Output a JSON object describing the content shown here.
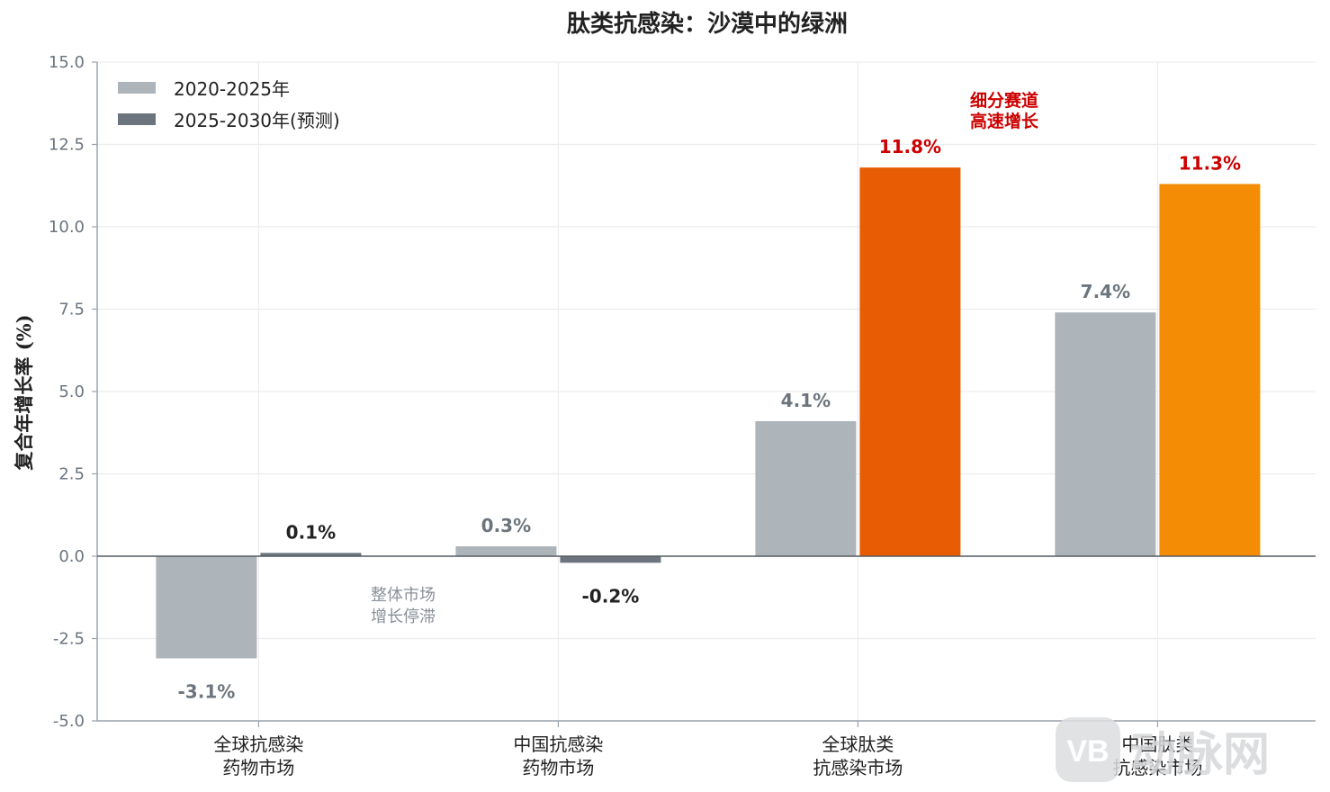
{
  "chart_data": {
    "type": "bar",
    "title": "肽类抗感染：沙漠中的绿洲",
    "ylabel": "复合年增长率 (%)",
    "xlabel": "",
    "ylim": [
      -5.0,
      15.0
    ],
    "yticks": [
      "-5.0",
      "-2.5",
      "0.0",
      "2.5",
      "5.0",
      "7.5",
      "10.0",
      "12.5",
      "15.0"
    ],
    "ytick_values": [
      -5.0,
      -2.5,
      0.0,
      2.5,
      5.0,
      7.5,
      10.0,
      12.5,
      15.0
    ],
    "grid": true,
    "legend_position": "top-left",
    "categories": [
      [
        "全球抗感染",
        "药物市场"
      ],
      [
        "中国抗感染",
        "药物市场"
      ],
      [
        "全球肽类",
        "抗感染市场"
      ],
      [
        "中国肽类",
        "抗感染市场"
      ]
    ],
    "series": [
      {
        "name": "2020-2025年",
        "values": [
          -3.1,
          0.3,
          4.1,
          7.4
        ],
        "labels": [
          "-3.1%",
          "0.3%",
          "4.1%",
          "7.4%"
        ],
        "color": "#adb4ba",
        "legend_color": "#adb4ba"
      },
      {
        "name": "2025-2030年(预测)",
        "values": [
          0.1,
          -0.2,
          11.8,
          11.3
        ],
        "labels": [
          "0.1%",
          "-0.2%",
          "11.8%",
          "11.3%"
        ],
        "colors": [
          "#6c757d",
          "#6c757d",
          "#e85d04",
          "#f48c06"
        ],
        "legend_color": "#6c757d"
      }
    ],
    "label_colors": {
      "gray": "#6c757d",
      "dark": "#222222",
      "red": "#cc0000"
    },
    "annotations": [
      {
        "lines": [
          "细分赛道",
          "高速增长"
        ],
        "style": "red"
      },
      {
        "lines": [
          "整体市场",
          "增长停滞"
        ],
        "style": "gray"
      }
    ]
  },
  "watermark": {
    "badge": "VB",
    "text": "动脉网"
  }
}
